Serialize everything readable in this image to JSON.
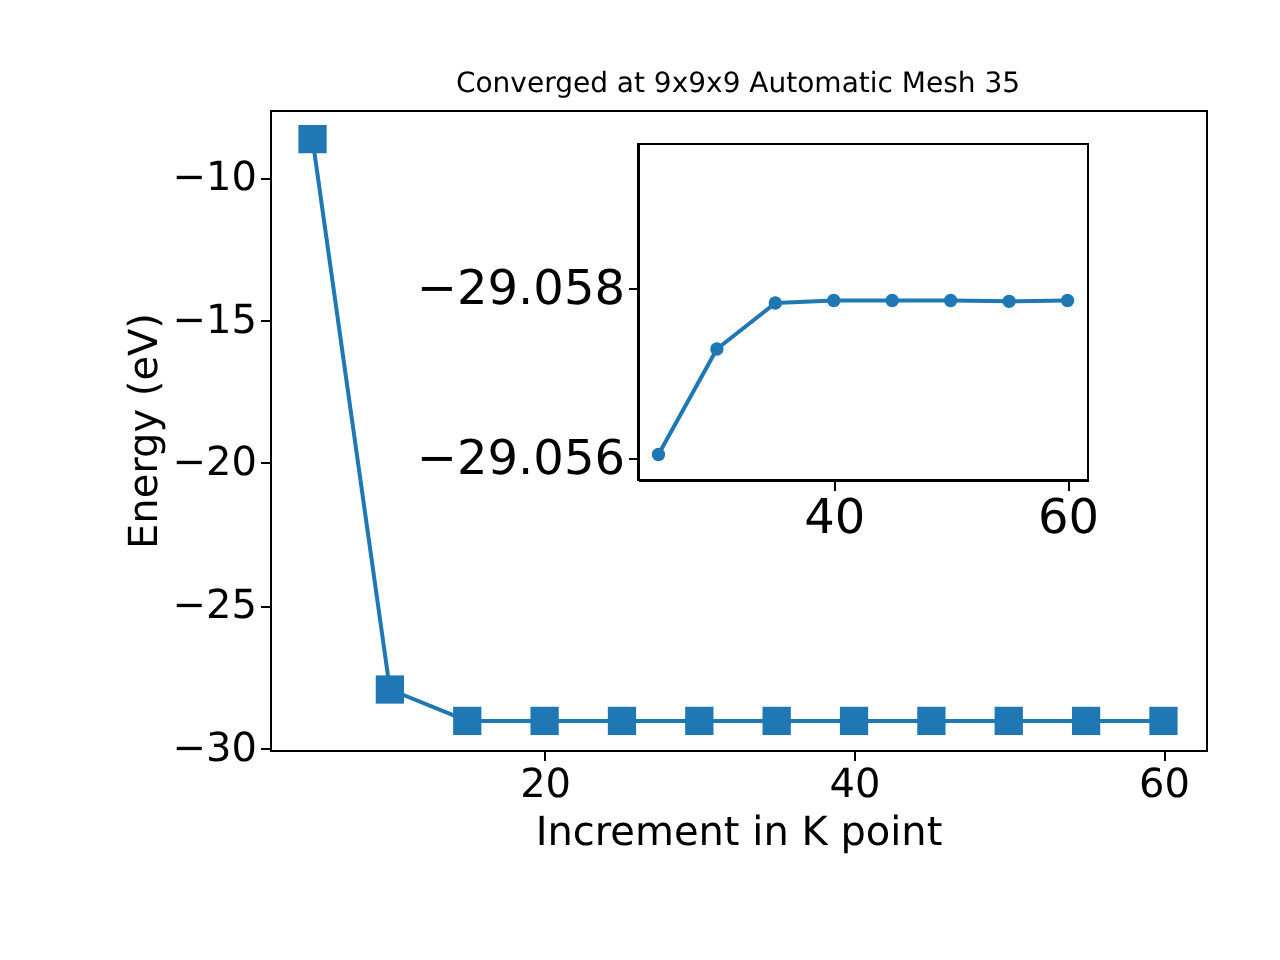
{
  "chart_data": [
    {
      "type": "line",
      "title": "Converged at 9x9x9 Automatic Mesh 35",
      "xlabel": "Increment in K point",
      "ylabel": "Energy (eV)",
      "marker": "square",
      "grid": false,
      "x": [
        5,
        10,
        15,
        20,
        25,
        30,
        35,
        40,
        45,
        50,
        55,
        60
      ],
      "series": [
        {
          "color": "#1f77b4",
          "values": [
            -8.67,
            -27.96,
            -29.06,
            -29.06,
            -29.06,
            -29.06,
            -29.06,
            -29.06,
            -29.06,
            -29.06,
            -29.06,
            -29.06
          ]
        }
      ],
      "xlim": [
        2.25,
        62.75
      ],
      "ylim": [
        -30.08,
        -7.65
      ],
      "xticks": [
        20,
        40,
        60
      ],
      "yticks": [
        -30,
        -25,
        -20,
        -15,
        -10
      ]
    },
    {
      "type": "line",
      "marker": "circle",
      "grid": false,
      "x": [
        25,
        30,
        35,
        40,
        45,
        50,
        55,
        60
      ],
      "series": [
        {
          "color": "#1f77b4",
          "values": [
            -29.05605,
            -29.05729,
            -29.05783,
            -29.05786,
            -29.05786,
            -29.05786,
            -29.05785,
            -29.05786
          ]
        }
      ],
      "xlim": [
        23.25,
        61.75
      ],
      "ylim": [
        -29.05575,
        -29.0597
      ],
      "xticks": [
        40,
        60
      ],
      "yticks": [
        -29.058,
        -29.056
      ]
    }
  ]
}
